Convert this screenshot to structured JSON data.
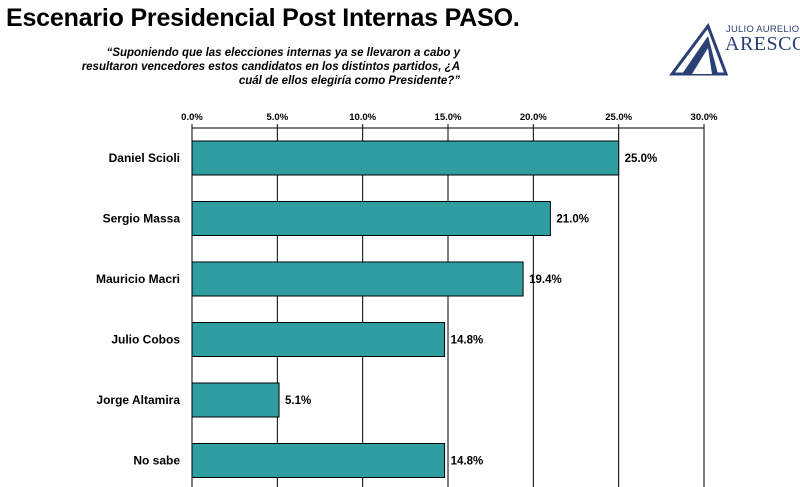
{
  "header": {
    "title": "Escenario Presidencial Post Internas PASO.",
    "question": "“Suponiendo que las elecciones internas ya se llevaron a cabo y resultaron vencedores estos candidatos en los distintos partidos, ¿A cuál de ellos elegiría como Presidente?”"
  },
  "logo": {
    "small_text": "JULIO AURELIO",
    "main_text": "ARESCO",
    "color": "#2a3f73"
  },
  "chart_data": {
    "type": "bar",
    "orientation": "horizontal",
    "categories": [
      "Daniel Scioli",
      "Sergio Massa",
      "Mauricio Macri",
      "Julio Cobos",
      "Jorge Altamira",
      "No sabe"
    ],
    "values": [
      25.0,
      21.0,
      19.4,
      14.8,
      5.1,
      14.8
    ],
    "value_labels": [
      "25.0%",
      "21.0%",
      "19.4%",
      "14.8%",
      "5.1%",
      "14.8%"
    ],
    "xlim": [
      0,
      30
    ],
    "ticks": [
      0,
      5,
      10,
      15,
      20,
      25,
      30
    ],
    "tick_labels": [
      "0.0%",
      "5.0%",
      "10.0%",
      "15.0%",
      "20.0%",
      "25.0%",
      "30.0%"
    ],
    "axis_position": "top",
    "grid": true,
    "bar_color": "#2f9ea3"
  }
}
